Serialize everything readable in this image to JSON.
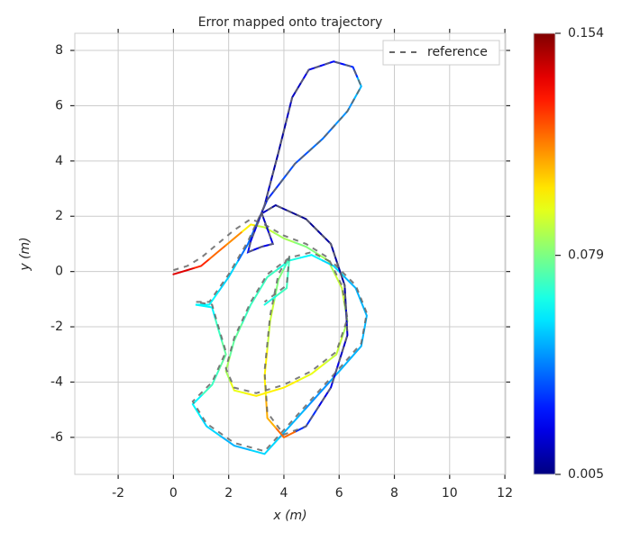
{
  "chart_data": {
    "type": "trajectory",
    "title": "Error mapped onto trajectory",
    "x_label": "x (m)",
    "y_label": "y (m)",
    "xlim": [
      -3.57,
      12.03
    ],
    "ylim": [
      -7.34,
      8.62
    ],
    "xticks": [
      -2,
      0,
      2,
      4,
      6,
      8,
      10,
      12
    ],
    "yticks": [
      -6,
      -4,
      -2,
      0,
      2,
      4,
      6,
      8
    ],
    "grid": true,
    "legend": "upper right",
    "colormap": "jet",
    "clim": [
      0.005,
      0.154
    ],
    "cticks": [
      0.005,
      0.079,
      0.154
    ],
    "series": [
      {
        "name": "reference",
        "color": "#666666",
        "dash": true,
        "x": [
          0,
          0.5,
          1,
          1.6,
          2.2,
          2.8,
          3.3,
          4,
          4.8,
          5.6,
          6.1,
          6.3,
          5.9,
          5,
          4,
          3,
          2.2,
          1.9,
          2.2,
          2.8,
          3.4,
          4.2,
          5,
          5.8,
          6.6,
          7,
          6.8,
          6.1,
          5.2,
          4.3,
          3.3,
          2.2,
          1.2,
          0.7,
          1.4,
          1.9,
          1.6,
          1.4,
          0.8,
          1.3,
          2,
          2.7,
          3.4,
          4.4,
          5.4,
          6.3,
          6.8,
          6.5,
          5.8,
          4.9,
          4.3,
          3.8,
          3.3,
          2.8,
          2.7,
          3.2,
          3.6,
          3.2,
          3.7,
          4.8,
          5.7,
          6.2,
          6.3,
          5.7,
          4.8,
          4,
          3.4,
          3.3,
          3.5,
          3.8,
          4.2,
          4.1,
          3.3
        ],
        "y": [
          0.05,
          0.2,
          0.5,
          1,
          1.5,
          1.9,
          1.7,
          1.3,
          1,
          0.5,
          -0.5,
          -1.7,
          -2.9,
          -3.6,
          -4.1,
          -4.4,
          -4.2,
          -3.5,
          -2.4,
          -1.1,
          -0.1,
          0.5,
          0.7,
          0.3,
          -0.5,
          -1.5,
          -2.6,
          -3.4,
          -4.4,
          -5.4,
          -6.5,
          -6.2,
          -5.5,
          -4.7,
          -4,
          -2.9,
          -1.9,
          -1.2,
          -1.1,
          -1.1,
          -0.1,
          1.1,
          2.6,
          3.9,
          4.8,
          5.8,
          6.7,
          7.4,
          7.6,
          7.3,
          6.3,
          4.3,
          2.4,
          1.1,
          0.7,
          0.9,
          1,
          2.1,
          2.4,
          1.9,
          1,
          -0.5,
          -2.3,
          -4.2,
          -5.6,
          -5.9,
          -5.1,
          -3.6,
          -1.6,
          -0.1,
          0.6,
          -0.5,
          -1.1
        ]
      },
      {
        "x": [
          0,
          0.5,
          1,
          1.6,
          2.2,
          2.8,
          3.3,
          4,
          4.8,
          5.6,
          6.1,
          6.3,
          5.9,
          5,
          4,
          3,
          2.2,
          1.9,
          2.2,
          2.8,
          3.4,
          4.2,
          5,
          5.8,
          6.6,
          7,
          6.8,
          6.1,
          5.2,
          4.3,
          3.3,
          2.2,
          1.2,
          0.7,
          1.4,
          1.9,
          1.6,
          1.4,
          0.8,
          1.3,
          2,
          2.7,
          3.4,
          4.4,
          5.4,
          6.3,
          6.8,
          6.5,
          5.8,
          4.9,
          4.3,
          3.8,
          3.3,
          2.8,
          2.7,
          3.2,
          3.6,
          3.2,
          3.7,
          4.8,
          5.7,
          6.2,
          6.3,
          5.7,
          4.8,
          4,
          3.4,
          3.3,
          3.5,
          3.8,
          4.2,
          4.1,
          3.3
        ],
        "y": [
          -0.1,
          0.05,
          0.2,
          0.7,
          1.2,
          1.7,
          1.6,
          1.2,
          0.9,
          0.4,
          -0.6,
          -1.8,
          -3,
          -3.7,
          -4.2,
          -4.5,
          -4.3,
          -3.6,
          -2.5,
          -1.2,
          -0.2,
          0.4,
          0.6,
          0.2,
          -0.6,
          -1.6,
          -2.7,
          -3.5,
          -4.5,
          -5.5,
          -6.6,
          -6.3,
          -5.6,
          -4.8,
          -4.1,
          -3,
          -2,
          -1.3,
          -1.2,
          -1.2,
          -0.2,
          1,
          2.6,
          3.9,
          4.8,
          5.8,
          6.7,
          7.4,
          7.6,
          7.3,
          6.3,
          4.3,
          2.4,
          1.1,
          0.7,
          0.9,
          1,
          2.1,
          2.4,
          1.9,
          1,
          -0.5,
          -2.3,
          -4.2,
          -5.6,
          -6,
          -5.3,
          -3.8,
          -1.8,
          -0.3,
          0.5,
          -0.6,
          -1.2
        ],
        "error": [
          0.14,
          0.14,
          0.13,
          0.12,
          0.115,
          0.1,
          0.09,
          0.085,
          0.08,
          0.085,
          0.09,
          0.085,
          0.09,
          0.095,
          0.1,
          0.1,
          0.095,
          0.085,
          0.075,
          0.07,
          0.07,
          0.065,
          0.06,
          0.055,
          0.05,
          0.05,
          0.05,
          0.05,
          0.045,
          0.05,
          0.055,
          0.05,
          0.055,
          0.06,
          0.07,
          0.075,
          0.07,
          0.06,
          0.06,
          0.06,
          0.055,
          0.04,
          0.03,
          0.035,
          0.04,
          0.045,
          0.05,
          0.03,
          0.025,
          0.02,
          0.015,
          0.01,
          0.015,
          0.02,
          0.025,
          0.02,
          0.02,
          0.015,
          0.01,
          0.008,
          0.01,
          0.01,
          0.015,
          0.02,
          0.03,
          0.12,
          0.11,
          0.1,
          0.09,
          0.08,
          0.07,
          0.07,
          0.065
        ]
      }
    ]
  }
}
